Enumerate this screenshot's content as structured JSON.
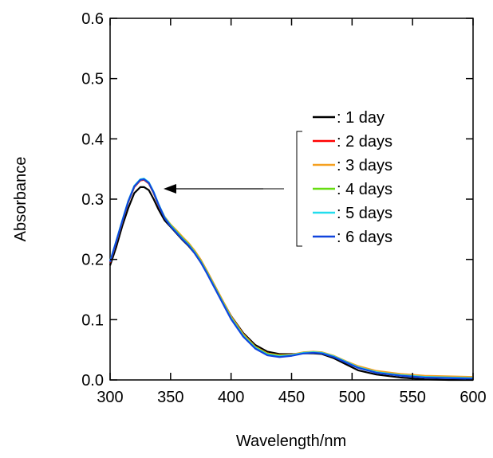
{
  "chart_data": {
    "type": "line",
    "xlabel": "Wavelength/nm",
    "ylabel": "Absorbance",
    "xlim": [
      300,
      600
    ],
    "ylim": [
      0,
      0.6
    ],
    "xticks": [
      300,
      350,
      400,
      450,
      500,
      550,
      600
    ],
    "yticks": [
      0.0,
      0.1,
      0.2,
      0.3,
      0.4,
      0.5,
      0.6
    ],
    "xtick_labels": [
      "300",
      "350",
      "400",
      "450",
      "500",
      "550",
      "600"
    ],
    "ytick_labels": [
      "0.0",
      "0.1",
      "0.2",
      "0.3",
      "0.4",
      "0.5",
      "0.6"
    ],
    "grid": false,
    "legend_position": "right",
    "annotation": "arrow pointing left from bracketed legend entries (2–6 days) toward the peak near 328 nm",
    "series": [
      {
        "name": ": 1 day",
        "color": "#000000",
        "x": [
          300,
          305,
          310,
          315,
          320,
          325,
          328,
          332,
          336,
          340,
          345,
          350,
          355,
          360,
          365,
          370,
          375,
          380,
          385,
          390,
          395,
          400,
          410,
          420,
          430,
          440,
          450,
          460,
          468,
          475,
          485,
          495,
          505,
          520,
          540,
          560,
          580,
          600
        ],
        "y": [
          0.19,
          0.22,
          0.255,
          0.285,
          0.31,
          0.32,
          0.32,
          0.315,
          0.3,
          0.283,
          0.265,
          0.254,
          0.243,
          0.232,
          0.222,
          0.21,
          0.195,
          0.178,
          0.16,
          0.142,
          0.124,
          0.106,
          0.078,
          0.058,
          0.047,
          0.043,
          0.043,
          0.044,
          0.044,
          0.043,
          0.036,
          0.026,
          0.016,
          0.009,
          0.004,
          0.001,
          0.0,
          0.0
        ]
      },
      {
        "name": ": 2 days",
        "color": "#ff0000",
        "x": [
          300,
          305,
          310,
          315,
          320,
          325,
          328,
          332,
          336,
          340,
          345,
          350,
          355,
          360,
          365,
          370,
          375,
          380,
          385,
          390,
          395,
          400,
          410,
          420,
          430,
          440,
          450,
          460,
          468,
          475,
          485,
          495,
          505,
          520,
          540,
          560,
          580,
          600
        ],
        "y": [
          0.195,
          0.228,
          0.262,
          0.295,
          0.32,
          0.331,
          0.332,
          0.326,
          0.31,
          0.29,
          0.27,
          0.257,
          0.247,
          0.236,
          0.226,
          0.214,
          0.199,
          0.181,
          0.162,
          0.143,
          0.124,
          0.105,
          0.076,
          0.055,
          0.044,
          0.041,
          0.042,
          0.045,
          0.046,
          0.045,
          0.039,
          0.03,
          0.021,
          0.013,
          0.008,
          0.005,
          0.004,
          0.003
        ]
      },
      {
        "name": ": 3 days",
        "color": "#f5a020",
        "x": [
          300,
          305,
          310,
          315,
          320,
          325,
          328,
          332,
          336,
          340,
          345,
          350,
          355,
          360,
          365,
          370,
          375,
          380,
          385,
          390,
          395,
          400,
          410,
          420,
          430,
          440,
          450,
          460,
          468,
          475,
          485,
          495,
          505,
          520,
          540,
          560,
          580,
          600
        ],
        "y": [
          0.196,
          0.229,
          0.263,
          0.296,
          0.321,
          0.332,
          0.333,
          0.327,
          0.311,
          0.291,
          0.271,
          0.258,
          0.248,
          0.237,
          0.227,
          0.214,
          0.199,
          0.181,
          0.162,
          0.143,
          0.124,
          0.105,
          0.076,
          0.055,
          0.044,
          0.041,
          0.042,
          0.046,
          0.047,
          0.046,
          0.04,
          0.031,
          0.023,
          0.015,
          0.01,
          0.007,
          0.006,
          0.005
        ]
      },
      {
        "name": ": 4 days",
        "color": "#66dd11",
        "x": [
          300,
          305,
          310,
          315,
          320,
          325,
          328,
          332,
          336,
          340,
          345,
          350,
          355,
          360,
          365,
          370,
          375,
          380,
          385,
          390,
          395,
          400,
          410,
          420,
          430,
          440,
          450,
          460,
          468,
          475,
          485,
          495,
          505,
          520,
          540,
          560,
          580,
          600
        ],
        "y": [
          0.196,
          0.229,
          0.263,
          0.296,
          0.321,
          0.332,
          0.333,
          0.327,
          0.311,
          0.291,
          0.27,
          0.257,
          0.246,
          0.235,
          0.225,
          0.212,
          0.197,
          0.179,
          0.16,
          0.141,
          0.122,
          0.103,
          0.074,
          0.054,
          0.043,
          0.04,
          0.041,
          0.045,
          0.046,
          0.045,
          0.039,
          0.03,
          0.021,
          0.013,
          0.008,
          0.005,
          0.004,
          0.003
        ]
      },
      {
        "name": ": 5 days",
        "color": "#22ddee",
        "x": [
          300,
          305,
          310,
          315,
          320,
          325,
          328,
          332,
          336,
          340,
          345,
          350,
          355,
          360,
          365,
          370,
          375,
          380,
          385,
          390,
          395,
          400,
          410,
          420,
          430,
          440,
          450,
          460,
          468,
          475,
          485,
          495,
          505,
          520,
          540,
          560,
          580,
          600
        ],
        "y": [
          0.197,
          0.23,
          0.264,
          0.297,
          0.322,
          0.333,
          0.334,
          0.328,
          0.312,
          0.292,
          0.27,
          0.256,
          0.245,
          0.234,
          0.224,
          0.211,
          0.196,
          0.178,
          0.159,
          0.14,
          0.121,
          0.102,
          0.073,
          0.053,
          0.042,
          0.039,
          0.041,
          0.045,
          0.046,
          0.045,
          0.039,
          0.03,
          0.021,
          0.013,
          0.008,
          0.005,
          0.004,
          0.003
        ]
      },
      {
        "name": ": 6 days",
        "color": "#1144dd",
        "x": [
          300,
          305,
          310,
          315,
          320,
          325,
          328,
          332,
          336,
          340,
          345,
          350,
          355,
          360,
          365,
          370,
          375,
          380,
          385,
          390,
          395,
          400,
          410,
          420,
          430,
          440,
          450,
          460,
          468,
          475,
          485,
          495,
          505,
          520,
          540,
          560,
          580,
          600
        ],
        "y": [
          0.196,
          0.229,
          0.263,
          0.296,
          0.321,
          0.332,
          0.333,
          0.327,
          0.311,
          0.291,
          0.269,
          0.255,
          0.244,
          0.233,
          0.223,
          0.21,
          0.195,
          0.177,
          0.158,
          0.139,
          0.12,
          0.101,
          0.072,
          0.052,
          0.041,
          0.038,
          0.04,
          0.044,
          0.045,
          0.044,
          0.038,
          0.029,
          0.02,
          0.012,
          0.007,
          0.004,
          0.003,
          0.002
        ]
      }
    ]
  }
}
